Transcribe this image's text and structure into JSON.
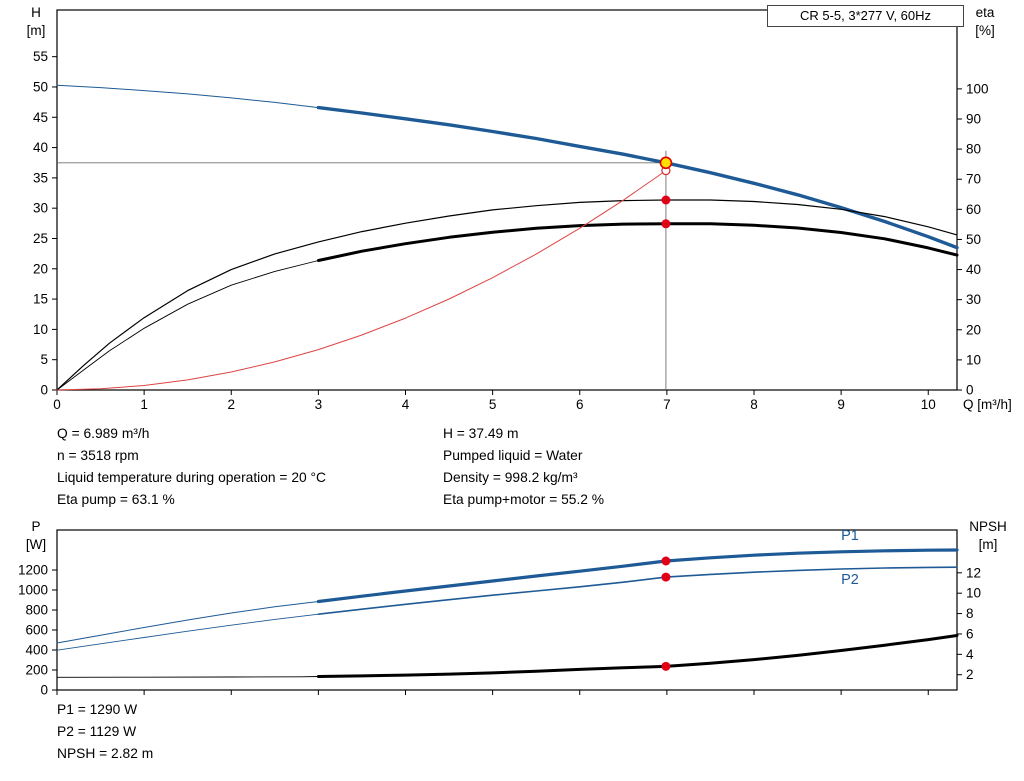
{
  "title_box": "CR 5-5, 3*277 V, 60Hz",
  "axis_labels": {
    "h_top": "H",
    "h_unit": "[m]",
    "eta_top": "eta",
    "eta_unit": "[%]",
    "q": "Q [m³/h]",
    "p_top": "P",
    "p_unit": "[W]",
    "npsh_top": "NPSH",
    "npsh_unit": "[m]"
  },
  "info": {
    "q": "Q = 6.989 m³/h",
    "n": "n = 3518 rpm",
    "liquid_temp": "Liquid temperature during operation = 20 °C",
    "eta_pump": "Eta pump = 63.1 %",
    "h": "H = 37.49 m",
    "pumped_liquid": "Pumped liquid = Water",
    "density": "Density = 998.2 kg/m³",
    "eta_pump_motor": "Eta pump+motor = 55.2 %",
    "p1": "P1 = 1290 W",
    "p2": "P2 = 1129 W",
    "npsh": "NPSH = 2.82 m"
  },
  "colors": {
    "curve_blue": "#1e5a96",
    "curve_black": "#000000",
    "curve_red": "#dd4444",
    "dot_red": "#e00018",
    "duty_yellow": "#ffdd00",
    "crosshair_gray": "#707070"
  },
  "chart_data": [
    {
      "type": "line",
      "title": "CR 5-5, 3*277 V, 60Hz",
      "x_axis": {
        "min": 0,
        "max": 10.33,
        "ticks": [
          0,
          1,
          2,
          3,
          4,
          5,
          6,
          7,
          8,
          9,
          10
        ],
        "show_labels": true,
        "label": "Q [m³/h]"
      },
      "y_left": {
        "min": 0,
        "max": 62.7,
        "ticks": [
          0,
          5,
          10,
          15,
          20,
          25,
          30,
          35,
          40,
          45,
          50,
          55
        ],
        "label": "H [m]"
      },
      "y_right": {
        "min": 0,
        "max": 126.2,
        "ticks": [
          0,
          10,
          20,
          30,
          40,
          50,
          60,
          70,
          80,
          90,
          100
        ],
        "label": "eta [%]"
      },
      "crosshair": {
        "x": 6.989,
        "y": 37.49,
        "axis": "left"
      },
      "series": [
        {
          "name": "head-curve",
          "axis": "left",
          "color": "#1e5a96",
          "width": 3.4,
          "thin_until": 3,
          "thin_width": 1.0,
          "points": [
            [
              0,
              50.3
            ],
            [
              0.5,
              49.9
            ],
            [
              1,
              49.4
            ],
            [
              1.5,
              48.85
            ],
            [
              2,
              48.2
            ],
            [
              2.5,
              47.45
            ],
            [
              3,
              46.6
            ],
            [
              3.5,
              45.7
            ],
            [
              4,
              44.75
            ],
            [
              4.5,
              43.75
            ],
            [
              5,
              42.65
            ],
            [
              5.5,
              41.5
            ],
            [
              6,
              40.2
            ],
            [
              6.5,
              38.9
            ],
            [
              6.989,
              37.49
            ],
            [
              7.5,
              35.85
            ],
            [
              8,
              34.1
            ],
            [
              8.5,
              32.2
            ],
            [
              9,
              30.1
            ],
            [
              9.5,
              27.8
            ],
            [
              10,
              25.3
            ],
            [
              10.33,
              23.5
            ]
          ]
        },
        {
          "name": "eta-pump",
          "axis": "right",
          "color": "#000000",
          "width": 1.2,
          "points": [
            [
              0,
              0
            ],
            [
              0.3,
              8
            ],
            [
              0.6,
              15.5
            ],
            [
              1,
              24
            ],
            [
              1.5,
              33
            ],
            [
              2,
              40
            ],
            [
              2.5,
              45.2
            ],
            [
              3,
              49.2
            ],
            [
              3.5,
              52.6
            ],
            [
              4,
              55.4
            ],
            [
              4.5,
              57.8
            ],
            [
              5,
              59.8
            ],
            [
              5.5,
              61.2
            ],
            [
              6,
              62.3
            ],
            [
              6.5,
              62.9
            ],
            [
              6.989,
              63.1
            ],
            [
              7.5,
              63.1
            ],
            [
              8,
              62.6
            ],
            [
              8.5,
              61.6
            ],
            [
              9,
              60
            ],
            [
              9.5,
              57.6
            ],
            [
              10,
              54.2
            ],
            [
              10.33,
              51.5
            ]
          ]
        },
        {
          "name": "eta-pump-motor",
          "axis": "right",
          "color": "#000000",
          "width": 3.0,
          "thin_until": 3,
          "thin_width": 0.9,
          "points": [
            [
              0,
              0
            ],
            [
              0.3,
              6.5
            ],
            [
              0.6,
              13
            ],
            [
              1,
              20.5
            ],
            [
              1.5,
              28.5
            ],
            [
              2,
              34.8
            ],
            [
              2.5,
              39.4
            ],
            [
              3,
              43
            ],
            [
              3.5,
              46.1
            ],
            [
              4,
              48.6
            ],
            [
              4.5,
              50.7
            ],
            [
              5,
              52.4
            ],
            [
              5.5,
              53.7
            ],
            [
              6,
              54.6
            ],
            [
              6.5,
              55.1
            ],
            [
              6.989,
              55.2
            ],
            [
              7.5,
              55.2
            ],
            [
              8,
              54.7
            ],
            [
              8.5,
              53.8
            ],
            [
              9,
              52.3
            ],
            [
              9.5,
              50.2
            ],
            [
              10,
              47.2
            ],
            [
              10.33,
              44.8
            ]
          ]
        },
        {
          "name": "system-curve",
          "axis": "left",
          "color": "#dd4444",
          "width": 1.0,
          "points": [
            [
              0,
              0
            ],
            [
              0.5,
              0.19
            ],
            [
              1,
              0.74
            ],
            [
              1.5,
              1.67
            ],
            [
              2,
              2.97
            ],
            [
              2.5,
              4.63
            ],
            [
              3,
              6.67
            ],
            [
              3.5,
              9.08
            ],
            [
              4,
              11.86
            ],
            [
              4.5,
              15.01
            ],
            [
              5,
              18.53
            ],
            [
              5.5,
              22.42
            ],
            [
              6,
              26.68
            ],
            [
              6.5,
              31.31
            ],
            [
              6.989,
              36.2
            ]
          ]
        }
      ],
      "markers": [
        {
          "name": "requested-duty-marker",
          "axis": "left",
          "x": 6.989,
          "y": 36.2,
          "r": 4,
          "fill": "#ffffff",
          "stroke": "#e03030",
          "stroke_width": 1.3
        },
        {
          "name": "duty-point-marker",
          "axis": "left",
          "x": 6.989,
          "y": 37.49,
          "r": 5.5,
          "fill": "#ffdd00",
          "stroke": "#dd0000",
          "stroke_width": 1.6
        },
        {
          "name": "eta-pump-duty-dot",
          "axis": "right",
          "x": 6.989,
          "y": 63.1,
          "r": 4.5,
          "fill": "#e00018"
        },
        {
          "name": "eta-pump-motor-duty-dot",
          "axis": "right",
          "x": 6.989,
          "y": 55.2,
          "r": 4.5,
          "fill": "#e00018"
        }
      ],
      "labels": []
    },
    {
      "type": "line",
      "title": "Power and NPSH curves",
      "x_axis": {
        "min": 0,
        "max": 10.33,
        "ticks": [
          0,
          1,
          2,
          3,
          4,
          5,
          6,
          7,
          8,
          9,
          10
        ],
        "show_labels": false,
        "label": "Q [m³/h]"
      },
      "y_left": {
        "min": 0,
        "max": 1600,
        "ticks": [
          0,
          200,
          400,
          600,
          800,
          1000,
          1200
        ],
        "label": "P [W]"
      },
      "y_right": {
        "min": 0.5,
        "max": 16.2,
        "ticks": [
          2,
          4,
          6,
          8,
          10,
          12
        ],
        "label": "NPSH [m]"
      },
      "series": [
        {
          "name": "p1-curve",
          "axis": "left",
          "color": "#1e5a96",
          "width": 3.2,
          "thin_until": 3,
          "thin_width": 1.0,
          "points": [
            [
              0,
              470
            ],
            [
              0.5,
              548
            ],
            [
              1,
              625
            ],
            [
              1.5,
              700
            ],
            [
              2,
              770
            ],
            [
              2.5,
              832
            ],
            [
              3,
              885
            ],
            [
              3.5,
              938
            ],
            [
              4,
              990
            ],
            [
              4.5,
              1040
            ],
            [
              5,
              1090
            ],
            [
              5.5,
              1140
            ],
            [
              6,
              1188
            ],
            [
              6.5,
              1238
            ],
            [
              6.989,
              1290
            ],
            [
              7.5,
              1322
            ],
            [
              8,
              1348
            ],
            [
              8.5,
              1368
            ],
            [
              9,
              1382
            ],
            [
              9.5,
              1392
            ],
            [
              10,
              1398
            ],
            [
              10.33,
              1400
            ]
          ]
        },
        {
          "name": "p2-curve",
          "axis": "left",
          "color": "#1e5a96",
          "width": 1.6,
          "thin_until": 3,
          "thin_width": 0.9,
          "points": [
            [
              0,
              398
            ],
            [
              0.5,
              462
            ],
            [
              1,
              525
            ],
            [
              1.5,
              588
            ],
            [
              2,
              648
            ],
            [
              2.5,
              706
            ],
            [
              3,
              758
            ],
            [
              3.5,
              808
            ],
            [
              4,
              857
            ],
            [
              4.5,
              903
            ],
            [
              5,
              948
            ],
            [
              5.5,
              990
            ],
            [
              6,
              1032
            ],
            [
              6.5,
              1078
            ],
            [
              6.989,
              1129
            ],
            [
              7.5,
              1156
            ],
            [
              8,
              1178
            ],
            [
              8.5,
              1196
            ],
            [
              9,
              1210
            ],
            [
              9.5,
              1220
            ],
            [
              10,
              1226
            ],
            [
              10.33,
              1228
            ]
          ]
        },
        {
          "name": "npsh-curve",
          "axis": "right",
          "color": "#000000",
          "width": 3.0,
          "thin_until": 3,
          "thin_width": 0.9,
          "points": [
            [
              0,
              1.75
            ],
            [
              1,
              1.76
            ],
            [
              2,
              1.78
            ],
            [
              2.8,
              1.8
            ],
            [
              3,
              1.82
            ],
            [
              3.5,
              1.88
            ],
            [
              4,
              1.96
            ],
            [
              4.5,
              2.06
            ],
            [
              5,
              2.18
            ],
            [
              5.5,
              2.34
            ],
            [
              6,
              2.52
            ],
            [
              6.5,
              2.68
            ],
            [
              6.989,
              2.82
            ],
            [
              7.5,
              3.12
            ],
            [
              8,
              3.48
            ],
            [
              8.5,
              3.9
            ],
            [
              9,
              4.38
            ],
            [
              9.5,
              4.9
            ],
            [
              10,
              5.45
            ],
            [
              10.33,
              5.85
            ]
          ]
        }
      ],
      "markers": [
        {
          "name": "p1-duty-dot",
          "axis": "left",
          "x": 6.989,
          "y": 1290,
          "r": 4.5,
          "fill": "#e00018"
        },
        {
          "name": "p2-duty-dot",
          "axis": "left",
          "x": 6.989,
          "y": 1129,
          "r": 4.5,
          "fill": "#e00018"
        },
        {
          "name": "npsh-duty-dot",
          "axis": "right",
          "x": 6.989,
          "y": 2.82,
          "r": 4.5,
          "fill": "#e00018"
        }
      ],
      "labels": [
        {
          "text": "P1",
          "x": 9.0,
          "y": 1500,
          "axis": "left",
          "color": "#1e5a96"
        },
        {
          "text": "P2",
          "x": 9.0,
          "y": 1060,
          "axis": "left",
          "color": "#1e5a96"
        }
      ]
    }
  ]
}
